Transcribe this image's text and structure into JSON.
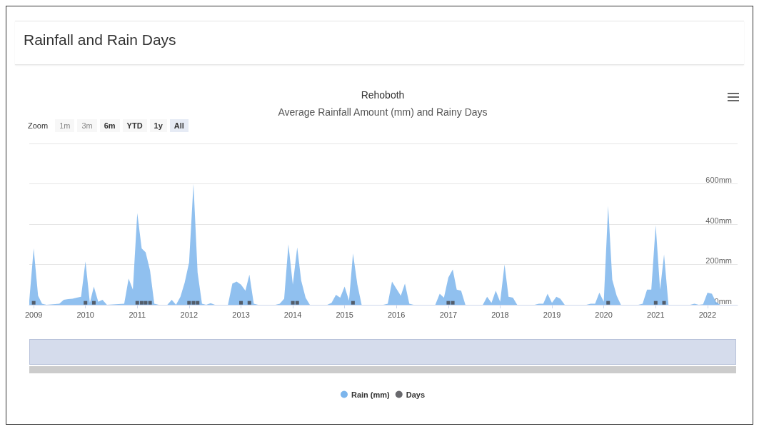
{
  "chart_data": {
    "type": "area",
    "title": "Rehoboth",
    "subtitle": "Average Rainfall Amount (mm) and Rainy Days",
    "annotations": [
      "Rainfall and Rain Days",
      "Zoom",
      "1m",
      "3m",
      "6m",
      "YTD",
      "1y",
      "All"
    ],
    "xlim": [
      "2008-12",
      "2022-08"
    ],
    "xticks": [
      "2009",
      "2010",
      "2011",
      "2012",
      "2013",
      "2014",
      "2015",
      "2016",
      "2017",
      "2018",
      "2019",
      "2020",
      "2021",
      "2022"
    ],
    "ylim": [
      0,
      800
    ],
    "yticks": [
      {
        "value": 0,
        "label": "0mm"
      },
      {
        "value": 200,
        "label": "200mm"
      },
      {
        "value": 400,
        "label": "400mm"
      },
      {
        "value": 600,
        "label": "600mm"
      },
      {
        "value": 800,
        "label": null
      }
    ],
    "grid": "y",
    "legend": "bottom",
    "series": [
      {
        "name": "Rain (mm)",
        "color": "#7cb5ec",
        "marker": "none",
        "x": [
          "2008-12",
          "2009-01",
          "2009-02",
          "2009-03",
          "2009-04",
          "2009-07",
          "2009-08",
          "2009-09",
          "2009-10",
          "2009-11",
          "2009-12",
          "2010-01",
          "2010-02",
          "2010-03",
          "2010-04",
          "2010-05",
          "2010-06",
          "2010-10",
          "2010-11",
          "2010-12",
          "2011-01",
          "2011-02",
          "2011-03",
          "2011-04",
          "2011-05",
          "2011-06",
          "2011-08",
          "2011-09",
          "2011-10",
          "2011-11",
          "2011-12",
          "2012-01",
          "2012-02",
          "2012-03",
          "2012-04",
          "2012-05",
          "2012-06",
          "2012-07",
          "2012-10",
          "2012-11",
          "2012-12",
          "2013-01",
          "2013-02",
          "2013-03",
          "2013-04",
          "2013-05",
          "2013-09",
          "2013-10",
          "2013-11",
          "2013-12",
          "2014-01",
          "2014-02",
          "2014-03",
          "2014-04",
          "2014-05",
          "2014-09",
          "2014-10",
          "2014-11",
          "2014-12",
          "2015-01",
          "2015-02",
          "2015-03",
          "2015-04",
          "2015-05",
          "2015-10",
          "2015-11",
          "2015-12",
          "2016-01",
          "2016-02",
          "2016-03",
          "2016-04",
          "2016-05",
          "2016-10",
          "2016-11",
          "2016-12",
          "2017-01",
          "2017-02",
          "2017-03",
          "2017-04",
          "2017-05",
          "2017-09",
          "2017-10",
          "2017-11",
          "2017-12",
          "2018-01",
          "2018-02",
          "2018-03",
          "2018-04",
          "2018-05",
          "2018-09",
          "2018-10",
          "2018-11",
          "2018-12",
          "2019-01",
          "2019-02",
          "2019-03",
          "2019-04",
          "2019-09",
          "2019-10",
          "2019-11",
          "2019-12",
          "2020-01",
          "2020-02",
          "2020-03",
          "2020-04",
          "2020-05",
          "2020-09",
          "2020-10",
          "2020-11",
          "2020-12",
          "2021-01",
          "2021-02",
          "2021-03",
          "2021-04",
          "2021-09",
          "2021-10",
          "2021-11",
          "2021-12",
          "2022-01",
          "2022-02",
          "2022-03",
          "2022-04",
          "2022-07"
        ],
        "values": [
          20,
          280,
          45,
          5,
          0,
          5,
          25,
          28,
          30,
          35,
          40,
          215,
          10,
          90,
          15,
          25,
          0,
          5,
          130,
          75,
          455,
          280,
          260,
          170,
          5,
          0,
          0,
          25,
          0,
          40,
          110,
          210,
          600,
          160,
          5,
          0,
          8,
          0,
          0,
          105,
          115,
          100,
          70,
          150,
          5,
          0,
          0,
          5,
          30,
          300,
          100,
          285,
          120,
          35,
          0,
          0,
          10,
          50,
          35,
          90,
          20,
          255,
          100,
          0,
          0,
          5,
          115,
          80,
          45,
          105,
          5,
          0,
          0,
          55,
          35,
          135,
          175,
          75,
          70,
          0,
          0,
          40,
          10,
          70,
          15,
          200,
          40,
          35,
          0,
          0,
          5,
          5,
          55,
          10,
          40,
          30,
          0,
          0,
          5,
          5,
          60,
          15,
          490,
          125,
          45,
          0,
          0,
          5,
          75,
          75,
          395,
          75,
          250,
          0,
          0,
          5,
          0,
          3,
          60,
          55,
          15,
          0,
          0
        ]
      },
      {
        "name": "Days",
        "type": "scatter",
        "color": "#434348",
        "marker": "square",
        "x": [
          "2009-01",
          "2010-01",
          "2010-03",
          "2011-01",
          "2011-02",
          "2011-03",
          "2011-04",
          "2012-01",
          "2012-02",
          "2012-03",
          "2013-01",
          "2013-03",
          "2014-01",
          "2014-02",
          "2015-03",
          "2017-01",
          "2017-02",
          "2020-02",
          "2021-01",
          "2021-03"
        ],
        "values": [
          10,
          10,
          10,
          10,
          10,
          10,
          10,
          10,
          10,
          10,
          10,
          10,
          10,
          10,
          10,
          10,
          10,
          10,
          10,
          10
        ]
      }
    ]
  }
}
